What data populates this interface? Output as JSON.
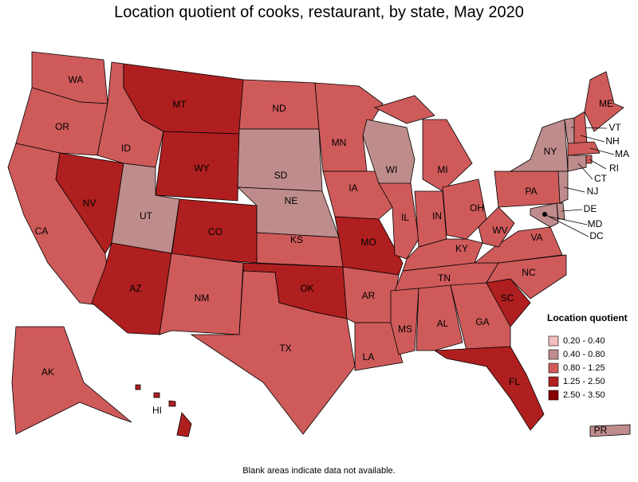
{
  "title": "Location quotient of cooks, restaurant, by state, May 2020",
  "note": "Blank areas indicate data not available.",
  "legend": {
    "title": "Location quotient",
    "items": [
      {
        "label": "0.20 - 0.40",
        "color": "#f4bcbc"
      },
      {
        "label": "0.40 - 0.80",
        "color": "#bf8c8c"
      },
      {
        "label": "0.80 - 1.25",
        "color": "#cf5a5a"
      },
      {
        "label": "1.25 - 2.50",
        "color": "#b01f1f"
      },
      {
        "label": "2.50 - 3.50",
        "color": "#880000"
      }
    ]
  },
  "states": [
    {
      "name": "WA",
      "class": 2
    },
    {
      "name": "OR",
      "class": 2
    },
    {
      "name": "CA",
      "class": 2
    },
    {
      "name": "NV",
      "class": 3
    },
    {
      "name": "ID",
      "class": 2
    },
    {
      "name": "MT",
      "class": 3
    },
    {
      "name": "WY",
      "class": 3
    },
    {
      "name": "UT",
      "class": 1
    },
    {
      "name": "CO",
      "class": 3
    },
    {
      "name": "AZ",
      "class": 3
    },
    {
      "name": "NM",
      "class": 2
    },
    {
      "name": "ND",
      "class": 2
    },
    {
      "name": "SD",
      "class": 1
    },
    {
      "name": "NE",
      "class": 1
    },
    {
      "name": "KS",
      "class": 2
    },
    {
      "name": "OK",
      "class": 3
    },
    {
      "name": "TX",
      "class": 2
    },
    {
      "name": "MN",
      "class": 2
    },
    {
      "name": "IA",
      "class": 2
    },
    {
      "name": "MO",
      "class": 3
    },
    {
      "name": "AR",
      "class": 2
    },
    {
      "name": "LA",
      "class": 2
    },
    {
      "name": "WI",
      "class": 1
    },
    {
      "name": "IL",
      "class": 2
    },
    {
      "name": "MI",
      "class": 2
    },
    {
      "name": "IN",
      "class": 2
    },
    {
      "name": "OH",
      "class": 2
    },
    {
      "name": "KY",
      "class": 2
    },
    {
      "name": "TN",
      "class": 2
    },
    {
      "name": "MS",
      "class": 2
    },
    {
      "name": "AL",
      "class": 2
    },
    {
      "name": "GA",
      "class": 2
    },
    {
      "name": "FL",
      "class": 3
    },
    {
      "name": "SC",
      "class": 3
    },
    {
      "name": "NC",
      "class": 2
    },
    {
      "name": "VA",
      "class": 2
    },
    {
      "name": "WV",
      "class": 2
    },
    {
      "name": "PA",
      "class": 2
    },
    {
      "name": "NY",
      "class": 1
    },
    {
      "name": "ME",
      "class": 2
    },
    {
      "name": "VT",
      "class": 1
    },
    {
      "name": "NH",
      "class": 2
    },
    {
      "name": "MA",
      "class": 2
    },
    {
      "name": "RI",
      "class": 2
    },
    {
      "name": "CT",
      "class": 1
    },
    {
      "name": "NJ",
      "class": 1
    },
    {
      "name": "DE",
      "class": 1
    },
    {
      "name": "MD",
      "class": 1
    },
    {
      "name": "DC",
      "class": 2
    },
    {
      "name": "AK",
      "class": 2
    },
    {
      "name": "HI",
      "class": 3
    },
    {
      "name": "PR",
      "class": 1
    }
  ]
}
